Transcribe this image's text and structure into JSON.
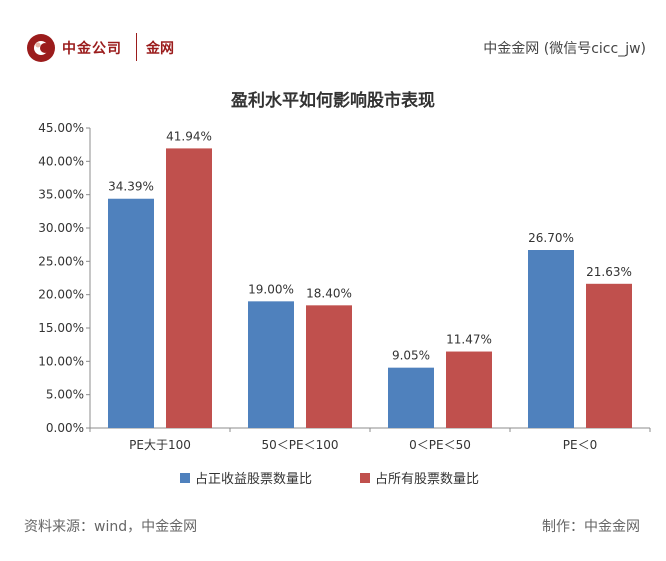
{
  "header": {
    "brand_name": "中金公司",
    "brand_sub": "金网",
    "wechat": "中金金网 (微信号cicc_jw)"
  },
  "footer": {
    "source": "资料来源：wind，中金金网",
    "maker": "制作：中金金网"
  },
  "colors": {
    "brand": "#9b1c1c",
    "series1": "#4f81bd",
    "series2": "#c0504d"
  },
  "chart_data": {
    "type": "bar",
    "title": "盈利水平如何影响股市表现",
    "xlabel": "",
    "ylabel": "",
    "categories": [
      "PE大于100",
      "50＜PE＜100",
      "0＜PE＜50",
      "PE＜0"
    ],
    "series": [
      {
        "name": "占正收益股票数量比",
        "values": [
          34.39,
          19.0,
          9.05,
          26.7
        ],
        "labels": [
          "34.39%",
          "19.00%",
          "9.05%",
          "26.70%"
        ]
      },
      {
        "name": "占所有股票数量比",
        "values": [
          41.94,
          18.4,
          11.47,
          21.63
        ],
        "labels": [
          "41.94%",
          "18.40%",
          "11.47%",
          "21.63%"
        ]
      }
    ],
    "ylim": [
      0,
      45
    ],
    "yticks": [
      "0.00%",
      "5.00%",
      "10.00%",
      "15.00%",
      "20.00%",
      "25.00%",
      "30.00%",
      "35.00%",
      "40.00%",
      "45.00%"
    ],
    "grid": false,
    "legend_position": "bottom"
  }
}
